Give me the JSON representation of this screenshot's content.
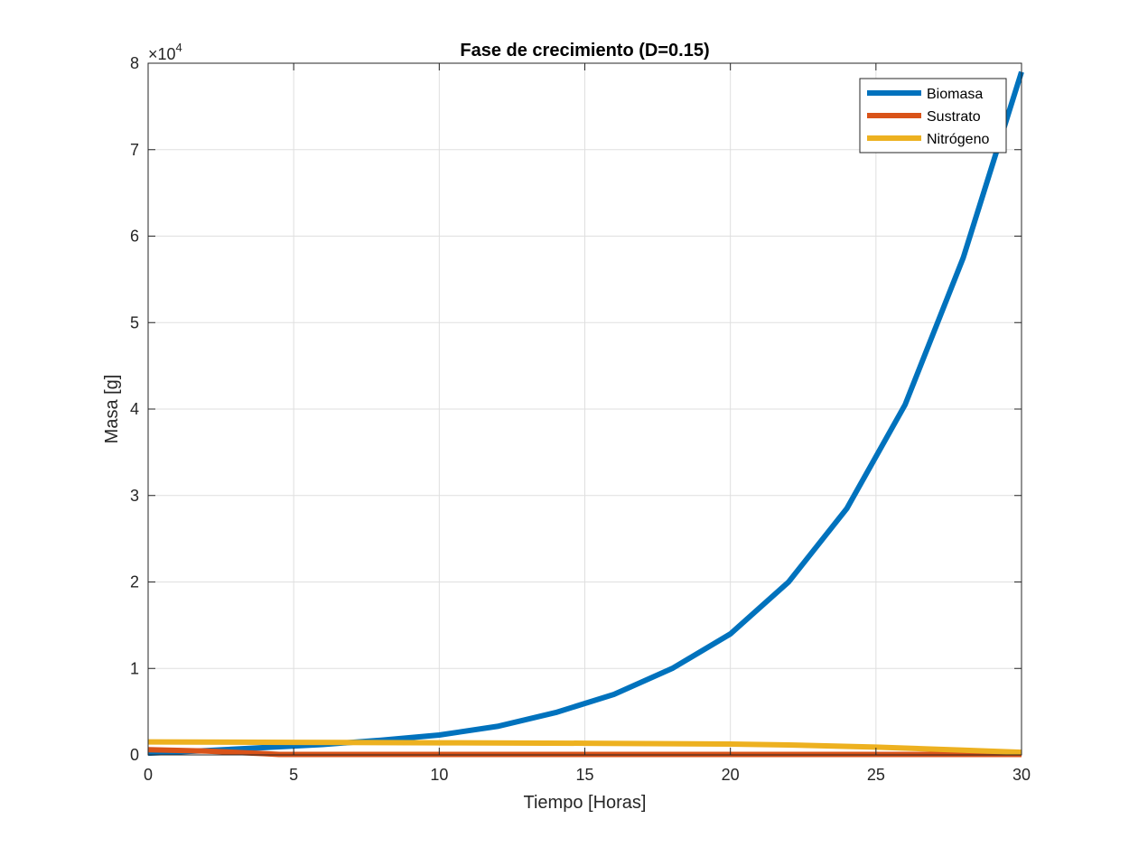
{
  "chart_data": {
    "type": "line",
    "title": "Fase de crecimiento (D=0.15)",
    "xlabel": "Tiempo [Horas]",
    "ylabel": "Masa [g]",
    "y_exponent_label": "×10",
    "y_exponent_power": "4",
    "xlim": [
      0,
      30
    ],
    "ylim": [
      0,
      80000
    ],
    "xticks": [
      0,
      5,
      10,
      15,
      20,
      25,
      30
    ],
    "xtick_labels": [
      "0",
      "5",
      "10",
      "15",
      "20",
      "25",
      "30"
    ],
    "yticks": [
      0,
      10000,
      20000,
      30000,
      40000,
      50000,
      60000,
      70000,
      80000
    ],
    "ytick_labels": [
      "0",
      "1",
      "2",
      "3",
      "4",
      "5",
      "6",
      "7",
      "8"
    ],
    "grid": true,
    "legend_position": "top-right",
    "series": [
      {
        "name": "Biomasa",
        "color": "#0072BD",
        "x": [
          0,
          2,
          4,
          6,
          8,
          10,
          12,
          14,
          16,
          18,
          20,
          22,
          24,
          26,
          28,
          30
        ],
        "y": [
          200,
          500,
          850,
          1200,
          1700,
          2300,
          3300,
          4900,
          7000,
          10000,
          14000,
          20000,
          28500,
          40500,
          57500,
          79000
        ]
      },
      {
        "name": "Sustrato",
        "color": "#D95319",
        "x": [
          0,
          2,
          4,
          4.5,
          10,
          20,
          30
        ],
        "y": [
          600,
          450,
          150,
          50,
          50,
          50,
          50
        ]
      },
      {
        "name": "Nitrógeno",
        "color": "#EDB120",
        "x": [
          0,
          5,
          10,
          15,
          20,
          22,
          25,
          28,
          30
        ],
        "y": [
          1500,
          1450,
          1400,
          1350,
          1250,
          1150,
          900,
          550,
          300
        ]
      }
    ]
  }
}
